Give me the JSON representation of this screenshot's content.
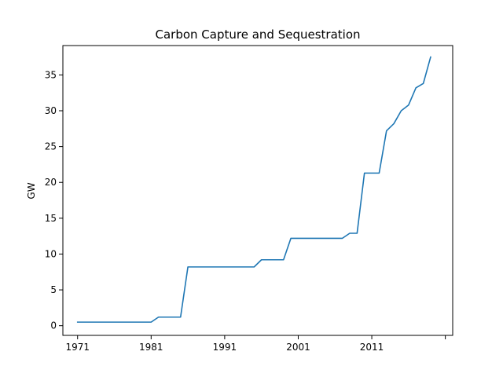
{
  "chart_data": {
    "type": "line",
    "title": "Carbon Capture and Sequestration",
    "xlabel": "",
    "ylabel": "GW",
    "xlim": [
      1969,
      2022
    ],
    "ylim": [
      -1.35,
      39.1
    ],
    "xticks": [
      1971,
      1981,
      1991,
      2001,
      2011,
      2021
    ],
    "xtick_labels": [
      "1971",
      "1981",
      "1991",
      "2001",
      "2011",
      ""
    ],
    "yticks": [
      0,
      5,
      10,
      15,
      20,
      25,
      30,
      35
    ],
    "ytick_labels": [
      "0",
      "5",
      "10",
      "15",
      "20",
      "25",
      "30",
      "35"
    ],
    "grid": false,
    "legend": false,
    "colors": {
      "line": "#1f77b4"
    },
    "series": [
      {
        "x": [
          1971,
          1972,
          1973,
          1974,
          1975,
          1976,
          1977,
          1978,
          1979,
          1980,
          1981,
          1982,
          1983,
          1984,
          1985,
          1986,
          1987,
          1988,
          1989,
          1990,
          1991,
          1992,
          1993,
          1994,
          1995,
          1996,
          1997,
          1998,
          1999,
          2000,
          2001,
          2002,
          2003,
          2004,
          2005,
          2006,
          2007,
          2008,
          2009,
          2010,
          2011,
          2012,
          2013,
          2014,
          2015,
          2016,
          2017,
          2018,
          2019
        ],
        "values": [
          0.5,
          0.5,
          0.5,
          0.5,
          0.5,
          0.5,
          0.5,
          0.5,
          0.5,
          0.5,
          0.5,
          1.2,
          1.2,
          1.2,
          1.2,
          8.2,
          8.2,
          8.2,
          8.2,
          8.2,
          8.2,
          8.2,
          8.2,
          8.2,
          8.2,
          9.2,
          9.2,
          9.2,
          9.2,
          12.2,
          12.2,
          12.2,
          12.2,
          12.2,
          12.2,
          12.2,
          12.2,
          12.9,
          12.9,
          21.3,
          21.3,
          21.3,
          27.2,
          28.2,
          30.0,
          30.8,
          33.2,
          33.8,
          37.5
        ]
      }
    ]
  }
}
